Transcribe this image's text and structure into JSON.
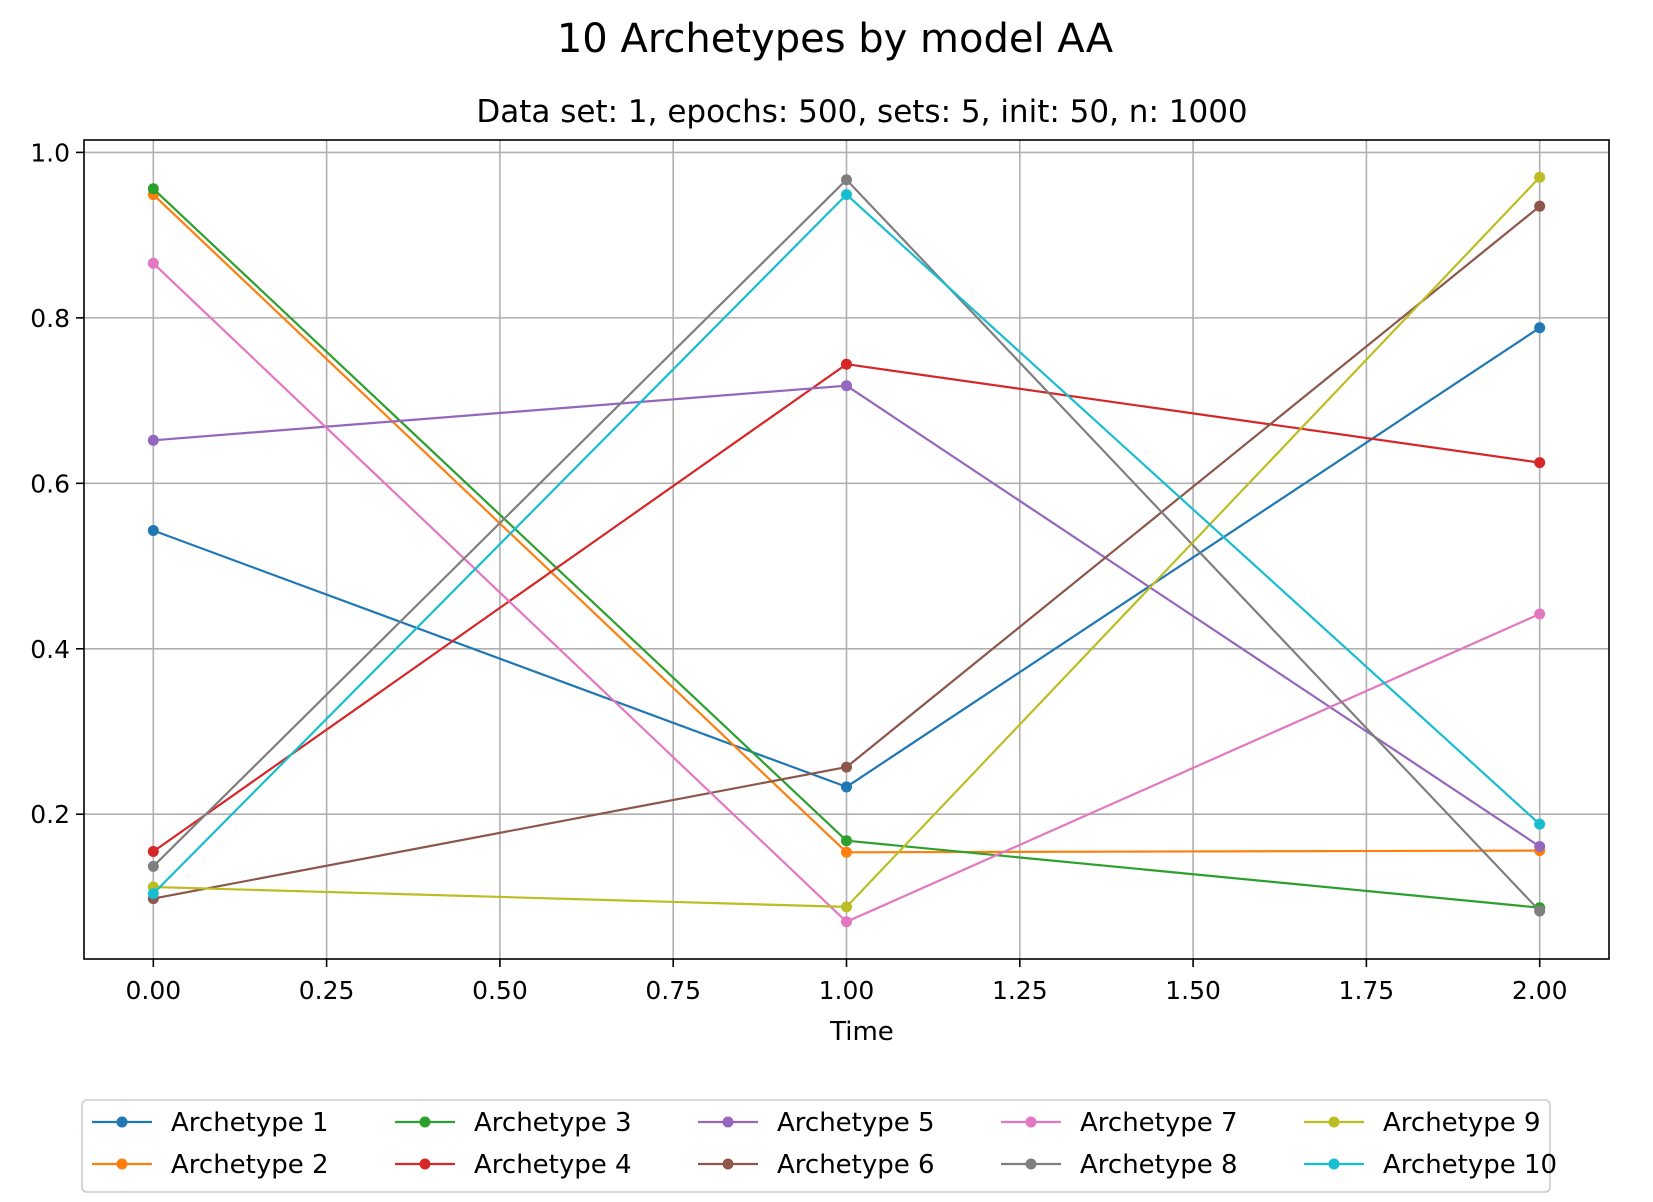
{
  "chart_data": {
    "type": "line",
    "suptitle": "10 Archetypes by model AA",
    "title": "Data set: 1, epochs: 500, sets: 5, init: 50, n: 1000",
    "xlabel": "Time",
    "ylabel": "",
    "xlim": [
      -0.1,
      2.1
    ],
    "ylim": [
      0.025,
      1.015
    ],
    "xticks": [
      0.0,
      0.25,
      0.5,
      0.75,
      1.0,
      1.25,
      1.5,
      1.75,
      2.0
    ],
    "xtick_labels": [
      "0.00",
      "0.25",
      "0.50",
      "0.75",
      "1.00",
      "1.25",
      "1.50",
      "1.75",
      "2.00"
    ],
    "yticks": [
      0.2,
      0.4,
      0.6,
      0.8,
      1.0
    ],
    "ytick_labels": [
      "0.2",
      "0.4",
      "0.6",
      "0.8",
      "1.0"
    ],
    "grid": true,
    "legend_position": "bottom-center",
    "legend_columns": 5,
    "x": [
      0,
      1,
      2
    ],
    "series": [
      {
        "name": "Archetype 1",
        "color": "#1f77b4",
        "values": [
          0.543,
          0.233,
          0.788
        ]
      },
      {
        "name": "Archetype 2",
        "color": "#ff7f0e",
        "values": [
          0.949,
          0.154,
          0.156
        ]
      },
      {
        "name": "Archetype 3",
        "color": "#2ca02c",
        "values": [
          0.956,
          0.168,
          0.087
        ]
      },
      {
        "name": "Archetype 4",
        "color": "#d62728",
        "values": [
          0.155,
          0.744,
          0.625
        ]
      },
      {
        "name": "Archetype 5",
        "color": "#9467bd",
        "values": [
          0.652,
          0.718,
          0.161
        ]
      },
      {
        "name": "Archetype 6",
        "color": "#8c564b",
        "values": [
          0.098,
          0.257,
          0.935
        ]
      },
      {
        "name": "Archetype 7",
        "color": "#e377c2",
        "values": [
          0.866,
          0.07,
          0.442
        ]
      },
      {
        "name": "Archetype 8",
        "color": "#7f7f7f",
        "values": [
          0.137,
          0.967,
          0.083
        ]
      },
      {
        "name": "Archetype 9",
        "color": "#bcbd22",
        "values": [
          0.112,
          0.088,
          0.97
        ]
      },
      {
        "name": "Archetype 10",
        "color": "#17becf",
        "values": [
          0.104,
          0.949,
          0.188
        ]
      }
    ]
  }
}
